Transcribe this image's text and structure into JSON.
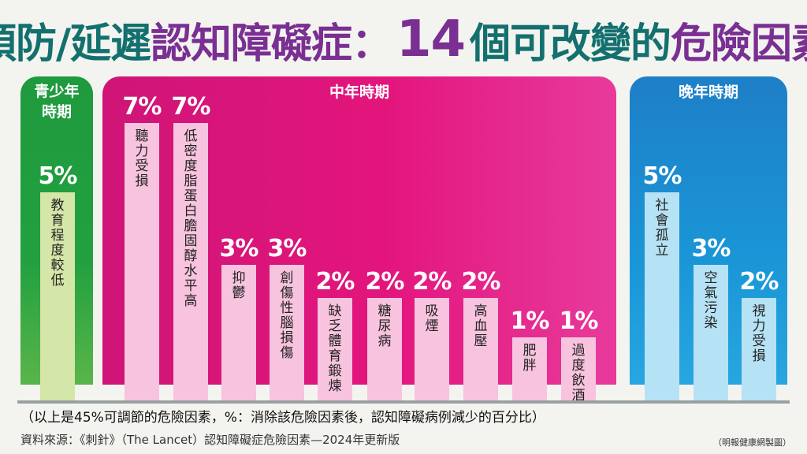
{
  "title": {
    "part1": "預防/延遲",
    "part2": "認知障礙症：",
    "part3": "14",
    "part4": "個可改變的",
    "part5": "危險因素"
  },
  "colors": {
    "youth": "#22a03f",
    "midlife": "#e3157d",
    "late": "#1a96d7",
    "youth_bar": "#d4e6a8",
    "midlife_bar": "#f7c3de",
    "late_bar": "#b6e2f5"
  },
  "panels": {
    "youth": "青少年\n時期",
    "midlife": "中年時期",
    "late": "晚年時期"
  },
  "chart_data": {
    "type": "bar",
    "unit": "%",
    "categories": [
      "教育程度較低",
      "聽力受損",
      "低密度脂蛋白膽固醇水平高",
      "抑鬱",
      "創傷性腦損傷",
      "缺乏體育鍛煉",
      "糖尿病",
      "吸煙",
      "高血壓",
      "肥胖",
      "過度飲酒",
      "社會孤立",
      "空氣污染",
      "視力受損"
    ],
    "values": [
      5,
      7,
      7,
      3,
      3,
      2,
      2,
      2,
      2,
      1,
      1,
      5,
      3,
      2
    ],
    "labels": [
      "5%",
      "7%",
      "7%",
      "3%",
      "3%",
      "2%",
      "2%",
      "2%",
      "2%",
      "1%",
      "1%",
      "5%",
      "3%",
      "2%"
    ],
    "groups": [
      "youth",
      "midlife",
      "midlife",
      "midlife",
      "midlife",
      "midlife",
      "midlife",
      "midlife",
      "midlife",
      "midlife",
      "midlife",
      "late",
      "late",
      "late"
    ]
  },
  "note": "（以上是45%可調節的危險因素，%：消除該危險因素後，認知障礙病例減少的百分比）",
  "source": "資料來源：《刺針》（The Lancet）認知障礙症危險因素—2024年更新版",
  "credit": "（明報健康網製圖）"
}
